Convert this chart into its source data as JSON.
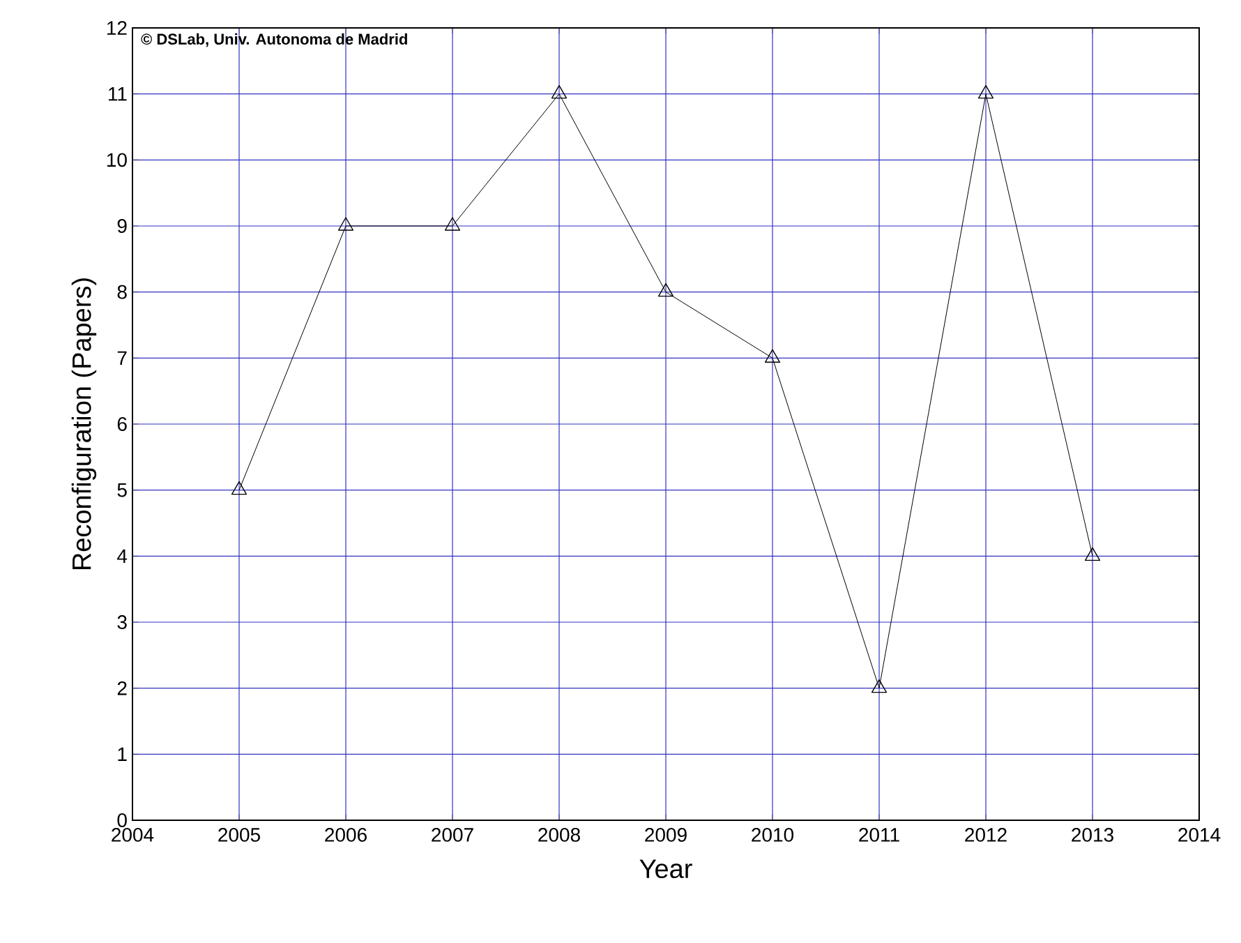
{
  "chart_data": {
    "type": "line",
    "xlabel": "Year",
    "ylabel": "Reconfiguration (Papers)",
    "annotations": [
      "© DSLab, Univ. Autonoma de Madrid"
    ],
    "series": [
      {
        "color": "#000000",
        "x": [
          2005,
          2006,
          2007,
          2008,
          2009,
          2010,
          2011,
          2012,
          2013
        ],
        "values": [
          5,
          9,
          9,
          11,
          8,
          7,
          2,
          11,
          4
        ]
      }
    ],
    "xlim": [
      2004,
      2014
    ],
    "xticks": [
      2004,
      2005,
      2006,
      2007,
      2008,
      2009,
      2010,
      2011,
      2012,
      2013,
      2014
    ],
    "ylim": [
      0,
      12
    ],
    "yticks": [
      0,
      1,
      2,
      3,
      4,
      5,
      6,
      7,
      8,
      9,
      10,
      11,
      12
    ],
    "grid": true,
    "marker": "triangle",
    "line_style": "solid"
  }
}
